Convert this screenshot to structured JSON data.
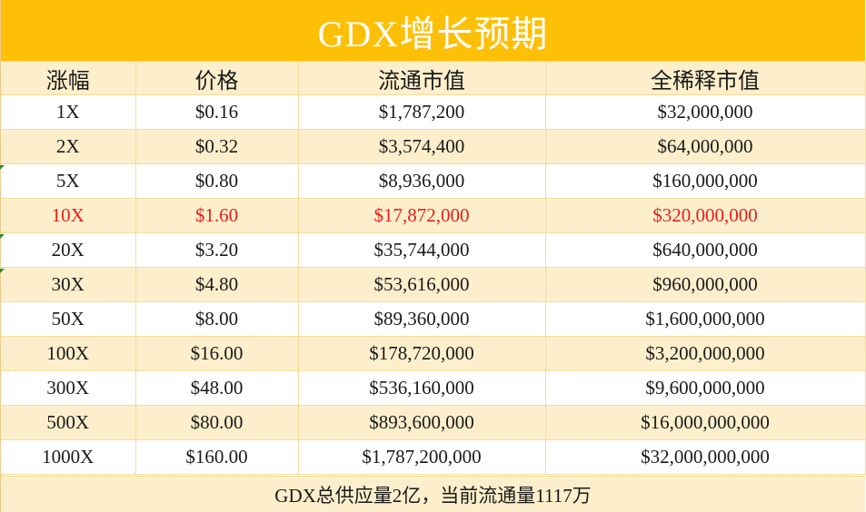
{
  "title": "GDX增长预期",
  "headers": [
    "涨幅",
    "价格",
    "流通市值",
    "全稀释市值"
  ],
  "rows": [
    {
      "multiplier": "1X",
      "price": "$0.16",
      "circulating_cap": "$1,787,200",
      "fdv": "$32,000,000",
      "highlight": false
    },
    {
      "multiplier": "2X",
      "price": "$0.32",
      "circulating_cap": "$3,574,400",
      "fdv": "$64,000,000",
      "highlight": false
    },
    {
      "multiplier": "5X",
      "price": "$0.80",
      "circulating_cap": "$8,936,000",
      "fdv": "$160,000,000",
      "highlight": false
    },
    {
      "multiplier": "10X",
      "price": "$1.60",
      "circulating_cap": "$17,872,000",
      "fdv": "$320,000,000",
      "highlight": true
    },
    {
      "multiplier": "20X",
      "price": "$3.20",
      "circulating_cap": "$35,744,000",
      "fdv": "$640,000,000",
      "highlight": false
    },
    {
      "multiplier": "30X",
      "price": "$4.80",
      "circulating_cap": "$53,616,000",
      "fdv": "$960,000,000",
      "highlight": false
    },
    {
      "multiplier": "50X",
      "price": "$8.00",
      "circulating_cap": "$89,360,000",
      "fdv": "$1,600,000,000",
      "highlight": false
    },
    {
      "multiplier": "100X",
      "price": "$16.00",
      "circulating_cap": "$178,720,000",
      "fdv": "$3,200,000,000",
      "highlight": false
    },
    {
      "multiplier": "300X",
      "price": "$48.00",
      "circulating_cap": "$536,160,000",
      "fdv": "$9,600,000,000",
      "highlight": false
    },
    {
      "multiplier": "500X",
      "price": "$80.00",
      "circulating_cap": "$893,600,000",
      "fdv": "$16,000,000,000",
      "highlight": false
    },
    {
      "multiplier": "1000X",
      "price": "$160.00",
      "circulating_cap": "$1,787,200,000",
      "fdv": "$32,000,000,000",
      "highlight": false
    }
  ],
  "footer": "GDX总供应量2亿，当前流通量1117万",
  "colors": {
    "title_bg": "#fdc007",
    "title_text": "#ffffff",
    "band_bg": "#fdefcb",
    "highlight_text": "#ee1c1c"
  }
}
